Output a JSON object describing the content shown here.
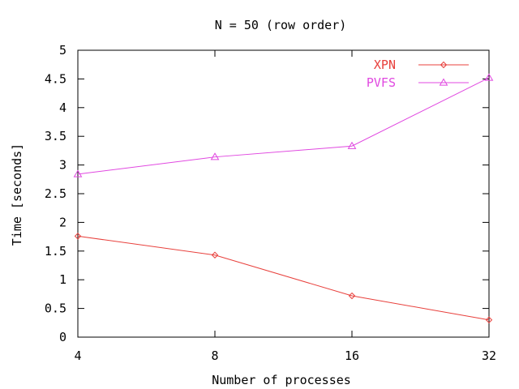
{
  "chart_data": {
    "type": "line",
    "title": "N = 50 (row order)",
    "xlabel": "Number of processes",
    "ylabel": "Time [seconds]",
    "categories": [
      "4",
      "8",
      "16",
      "32"
    ],
    "ylim": [
      0,
      5
    ],
    "yticks": [
      "0",
      "0.5",
      "1",
      "1.5",
      "2",
      "2.5",
      "3",
      "3.5",
      "4",
      "4.5",
      "5"
    ],
    "grid": false,
    "legend_position": "top-right",
    "series": [
      {
        "name": "XPN",
        "values": [
          1.76,
          1.43,
          0.72,
          0.3
        ],
        "color": "#e8403c",
        "marker": "diamond"
      },
      {
        "name": "PVFS",
        "values": [
          2.84,
          3.14,
          3.33,
          4.52
        ],
        "color": "#e048e0",
        "marker": "triangle"
      }
    ]
  }
}
